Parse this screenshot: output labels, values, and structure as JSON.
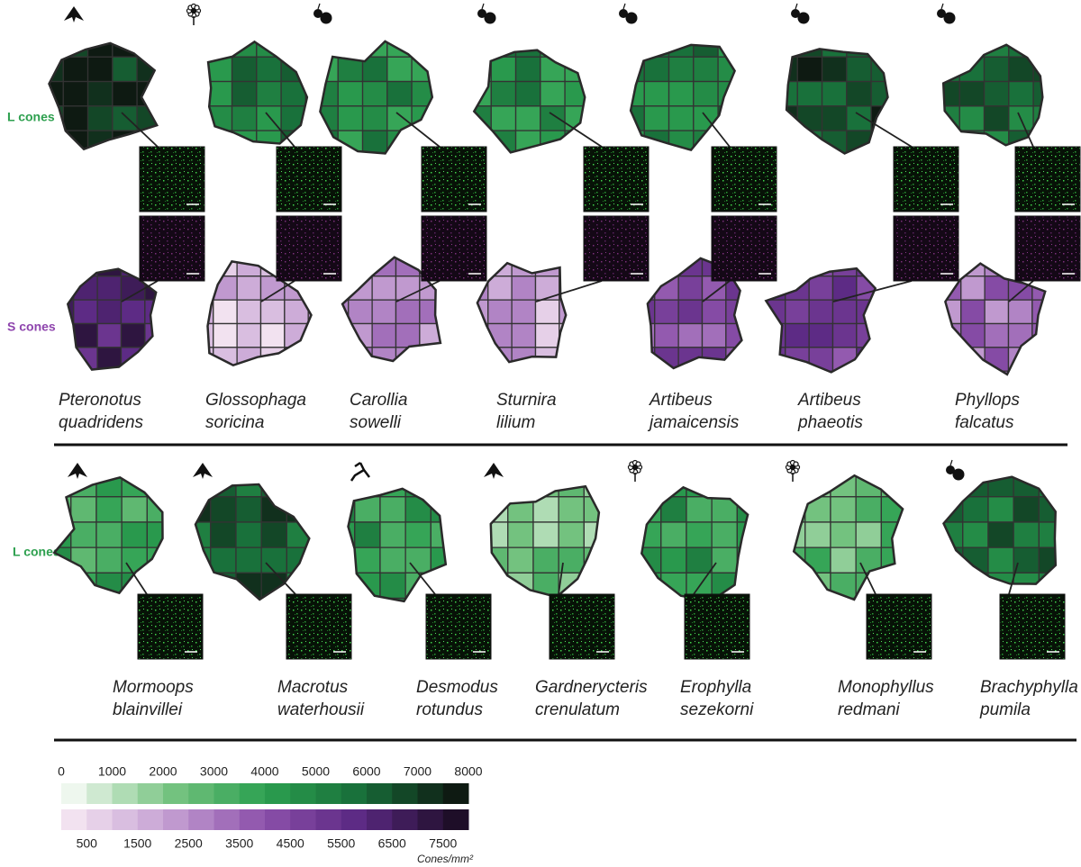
{
  "top_panel": {
    "l_label": "L cones",
    "s_label": "S cones",
    "species": [
      {
        "genus": "Pteronotus",
        "epithet": "quadridens"
      },
      {
        "genus": "Glossophaga",
        "epithet": "soricina"
      },
      {
        "genus": "Carollia",
        "epithet": "sowelli"
      },
      {
        "genus": "Sturnira",
        "epithet": "lilium"
      },
      {
        "genus": "Artibeus",
        "epithet": "jamaicensis"
      },
      {
        "genus": "Artibeus",
        "epithet": "phaeotis"
      },
      {
        "genus": "Phyllops",
        "epithet": "falcatus"
      }
    ]
  },
  "bottom_panel": {
    "l_label": "L cones",
    "species": [
      {
        "genus": "Mormoops",
        "epithet": "blainvillei"
      },
      {
        "genus": "Macrotus",
        "epithet": "waterhousii"
      },
      {
        "genus": "Desmodus",
        "epithet": "rotundus"
      },
      {
        "genus": "Gardnerycteris",
        "epithet": "crenulatum"
      },
      {
        "genus": "Erophylla",
        "epithet": "sezekorni"
      },
      {
        "genus": "Monophyllus",
        "epithet": "redmani"
      },
      {
        "genus": "Brachyphylla",
        "epithet": "pumila"
      }
    ]
  },
  "colorbar": {
    "l_ticks": [
      0,
      1000,
      2000,
      3000,
      4000,
      5000,
      6000,
      7000,
      8000
    ],
    "s_ticks": [
      500,
      1500,
      2500,
      3500,
      4500,
      5500,
      6500,
      7500
    ],
    "unit": "Cones/mm²"
  }
}
